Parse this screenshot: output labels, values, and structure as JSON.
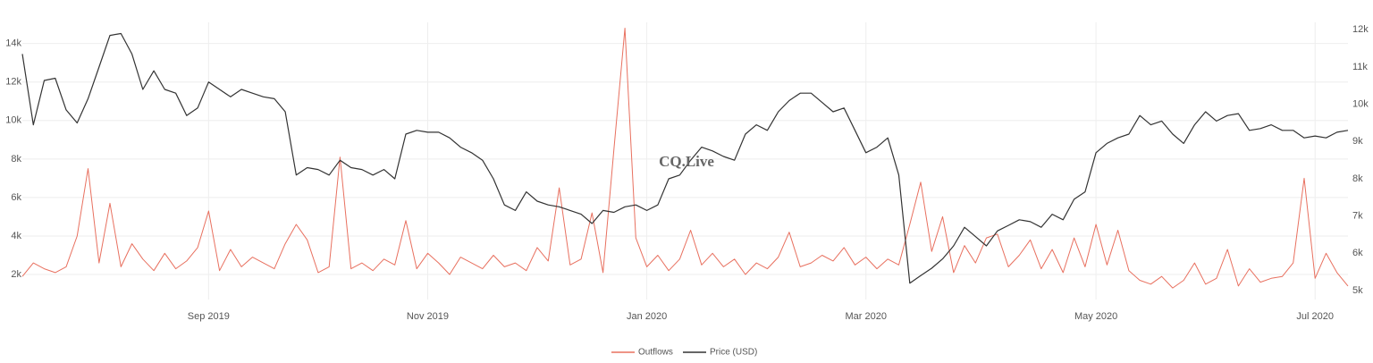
{
  "chart_data": {
    "type": "line",
    "watermark": "CQ.Live",
    "categories": [
      null,
      null,
      null,
      null,
      null,
      null,
      null,
      null,
      null,
      null,
      null,
      null,
      null,
      null,
      null,
      null,
      null,
      "Sep 2019",
      null,
      null,
      null,
      null,
      null,
      null,
      null,
      null,
      null,
      null,
      null,
      null,
      null,
      null,
      null,
      null,
      null,
      null,
      null,
      "Nov 2019",
      null,
      null,
      null,
      null,
      null,
      null,
      null,
      null,
      null,
      null,
      null,
      null,
      null,
      null,
      null,
      null,
      null,
      null,
      null,
      "Jan 2020",
      null,
      null,
      null,
      null,
      null,
      null,
      null,
      null,
      null,
      null,
      null,
      null,
      null,
      null,
      null,
      null,
      null,
      null,
      null,
      "Mar 2020",
      null,
      null,
      null,
      null,
      null,
      null,
      null,
      null,
      null,
      null,
      null,
      null,
      null,
      null,
      null,
      null,
      null,
      null,
      null,
      null,
      "May 2020",
      null,
      null,
      null,
      null,
      null,
      null,
      null,
      null,
      null,
      null,
      null,
      null,
      null,
      null,
      null,
      null,
      null,
      null,
      null,
      "Jul 2020",
      null,
      null,
      null
    ],
    "series": [
      {
        "name": "Outflows",
        "color": "#e8705f",
        "values": [
          1900,
          2600,
          2300,
          2100,
          2400,
          4000,
          7500,
          2600,
          5700,
          2400,
          3600,
          2800,
          2200,
          3100,
          2300,
          2700,
          3400,
          5300,
          2200,
          3300,
          2400,
          2900,
          2600,
          2300,
          3600,
          4600,
          3800,
          2100,
          2400,
          8100,
          2300,
          2600,
          2200,
          2800,
          2500,
          4800,
          2300,
          3100,
          2600,
          2000,
          2900,
          2600,
          2300,
          3000,
          2400,
          2600,
          2200,
          3400,
          2700,
          6500,
          2500,
          2800,
          5200,
          2100,
          8500,
          14800,
          3900,
          2400,
          3000,
          2200,
          2800,
          4300,
          2500,
          3100,
          2400,
          2800,
          2000,
          2600,
          2300,
          2900,
          4200,
          2400,
          2600,
          3000,
          2700,
          3400,
          2500,
          2900,
          2300,
          2800,
          2500,
          4600,
          6800,
          3200,
          5000,
          2100,
          3500,
          2600,
          3900,
          4100,
          2400,
          3000,
          3800,
          2300,
          3300,
          2100,
          3900,
          2400,
          4600,
          2500,
          4300,
          2200,
          1700,
          1500,
          1900,
          1300,
          1700,
          2600,
          1500,
          1800,
          3300,
          1400,
          2300,
          1600,
          1800,
          1900,
          2600,
          7000,
          1800,
          3100,
          2100,
          1400
        ]
      },
      {
        "name": "Price (USD)",
        "color": "#333333",
        "axis": "y2",
        "values": [
          11350,
          9450,
          10640,
          10700,
          9850,
          9500,
          10150,
          11000,
          11850,
          11900,
          11350,
          10400,
          10900,
          10400,
          10300,
          9700,
          9900,
          10600,
          10400,
          10200,
          10400,
          10300,
          10200,
          10150,
          9800,
          8100,
          8300,
          8250,
          8100,
          8500,
          8300,
          8250,
          8100,
          8250,
          8000,
          9200,
          9300,
          9250,
          9250,
          9100,
          8850,
          8700,
          8500,
          8000,
          7300,
          7150,
          7650,
          7400,
          7300,
          7250,
          7150,
          7050,
          6800,
          7150,
          7100,
          7250,
          7300,
          7150,
          7300,
          8000,
          8100,
          8500,
          8850,
          8750,
          8600,
          8500,
          9200,
          9450,
          9300,
          9800,
          10100,
          10300,
          10300,
          10050,
          9800,
          9900,
          9300,
          8700,
          8850,
          9100,
          8100,
          5200,
          5400,
          5600,
          5850,
          6200,
          6700,
          6450,
          6200,
          6600,
          6750,
          6900,
          6850,
          6700,
          7050,
          6900,
          7450,
          7650,
          8700,
          8950,
          9100,
          9200,
          9700,
          9450,
          9550,
          9200,
          8950,
          9450,
          9800,
          9550,
          9700,
          9750,
          9300,
          9350,
          9450,
          9300,
          9300,
          9100,
          9150,
          9100,
          9250,
          9300
        ]
      }
    ],
    "ylim": [
      700,
      15100
    ],
    "yticks": [
      {
        "value": 2000,
        "label": "2k"
      },
      {
        "value": 4000,
        "label": "4k"
      },
      {
        "value": 6000,
        "label": "6k"
      },
      {
        "value": 8000,
        "label": "8k"
      },
      {
        "value": 10000,
        "label": "10k"
      },
      {
        "value": 12000,
        "label": "12k"
      },
      {
        "value": 14000,
        "label": "14k"
      }
    ],
    "y2lim": [
      4760,
      12200
    ],
    "y2ticks": [
      {
        "value": 5000,
        "label": "5k"
      },
      {
        "value": 6000,
        "label": "6k"
      },
      {
        "value": 7000,
        "label": "7k"
      },
      {
        "value": 8000,
        "label": "8k"
      },
      {
        "value": 9000,
        "label": "9k"
      },
      {
        "value": 10000,
        "label": "10k"
      },
      {
        "value": 11000,
        "label": "11k"
      },
      {
        "value": 12000,
        "label": "12k"
      }
    ],
    "grid": true
  }
}
